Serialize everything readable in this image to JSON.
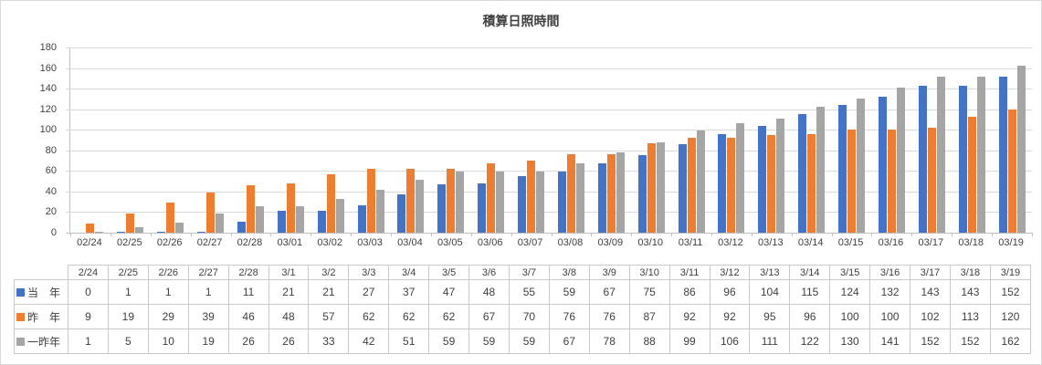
{
  "title": "積算日照時間",
  "chart_data": {
    "type": "bar",
    "title": "積算日照時間",
    "xlabel": "",
    "ylabel": "",
    "ylim": [
      0,
      180
    ],
    "y_ticks": [
      0,
      20,
      40,
      60,
      80,
      100,
      120,
      140,
      160,
      180
    ],
    "grid": true,
    "legend_position": "data-table-left",
    "x_axis_labels": [
      "02/24",
      "02/25",
      "02/26",
      "02/27",
      "02/28",
      "03/01",
      "03/02",
      "03/03",
      "03/04",
      "03/05",
      "03/06",
      "03/07",
      "03/08",
      "03/09",
      "03/10",
      "03/11",
      "03/12",
      "03/13",
      "03/14",
      "03/15",
      "03/16",
      "03/17",
      "03/18",
      "03/19"
    ],
    "table_column_headers": [
      "2/24",
      "2/25",
      "2/26",
      "2/27",
      "2/28",
      "3/1",
      "3/2",
      "3/3",
      "3/4",
      "3/5",
      "3/6",
      "3/7",
      "3/8",
      "3/9",
      "3/10",
      "3/11",
      "3/12",
      "3/13",
      "3/14",
      "3/15",
      "3/16",
      "3/17",
      "3/18",
      "3/19"
    ],
    "series": [
      {
        "name": "当　年",
        "color": "#4472C4",
        "values": [
          0,
          1,
          1,
          1,
          11,
          21,
          21,
          27,
          37,
          47,
          48,
          55,
          59,
          67,
          75,
          86,
          96,
          104,
          115,
          124,
          132,
          143,
          143,
          152
        ]
      },
      {
        "name": "昨　年",
        "color": "#ED7D31",
        "values": [
          9,
          19,
          29,
          39,
          46,
          48,
          57,
          62,
          62,
          62,
          67,
          70,
          76,
          76,
          87,
          92,
          92,
          95,
          96,
          100,
          100,
          102,
          113,
          120
        ]
      },
      {
        "name": "一昨年",
        "color": "#A5A5A5",
        "values": [
          1,
          5,
          10,
          19,
          26,
          26,
          33,
          42,
          51,
          59,
          59,
          59,
          67,
          78,
          88,
          99,
          106,
          111,
          122,
          130,
          141,
          152,
          152,
          162
        ]
      }
    ]
  },
  "colors": {
    "background": "#FFFFFF",
    "gridline": "#D9D9D9",
    "axis_line": "#BFBFBF",
    "axis_text": "#404040",
    "title_text": "#404040",
    "table_border": "#C9C9C9",
    "table_text": "#404040",
    "series_blue": "#4472C4",
    "series_orange": "#ED7D31",
    "series_gray": "#A5A5A5"
  }
}
